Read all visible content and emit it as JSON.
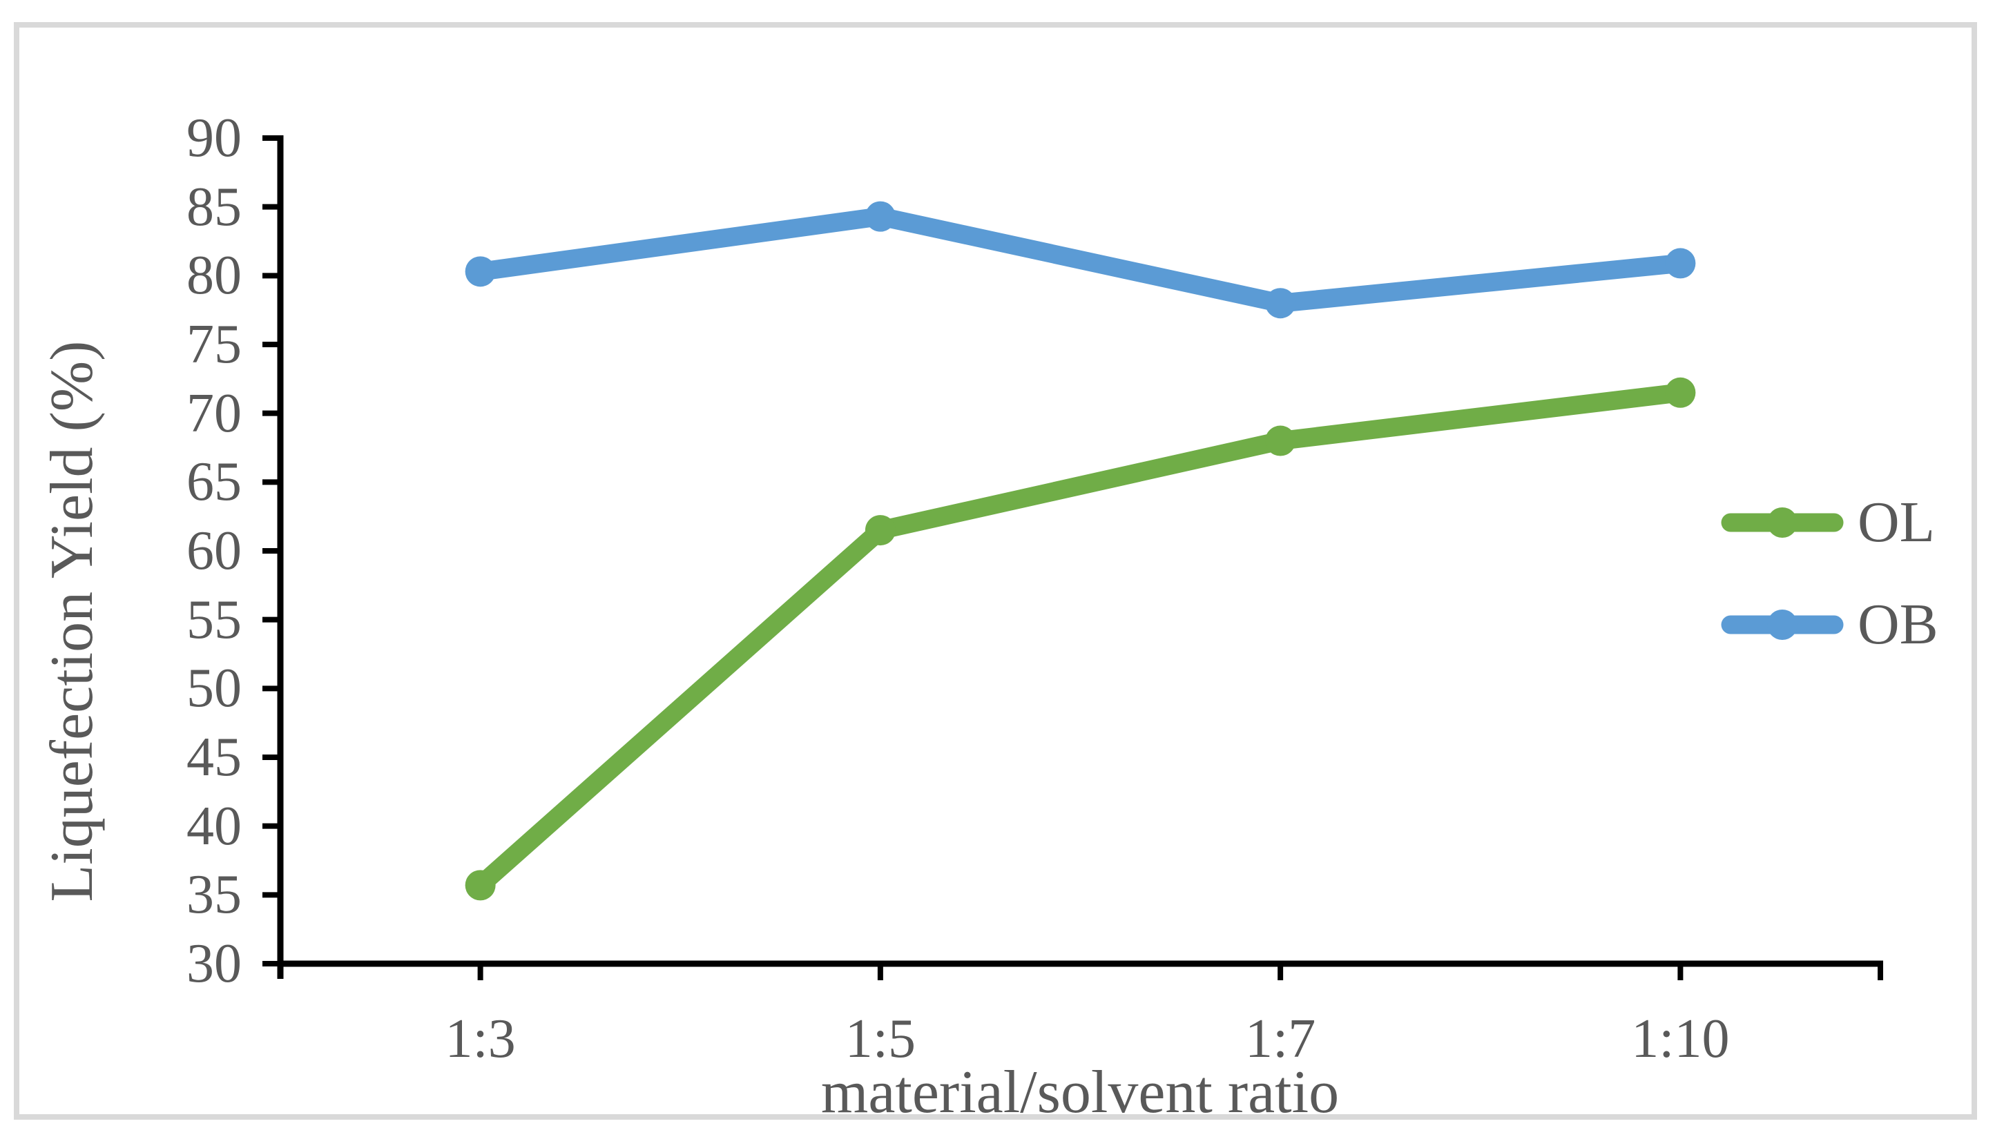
{
  "chart_data": {
    "type": "line",
    "title": "",
    "xlabel": "material/solvent ratio",
    "ylabel": "Liquefection Yield (%)",
    "categories": [
      "1:3",
      "1:5",
      "1:7",
      "1:10"
    ],
    "series": [
      {
        "name": "OL",
        "color": "#70AD47",
        "values": [
          35.7,
          61.5,
          68.0,
          71.5
        ]
      },
      {
        "name": "OB",
        "color": "#5B9BD5",
        "values": [
          80.3,
          84.3,
          78.0,
          80.9
        ]
      }
    ],
    "ylim": [
      30,
      90
    ],
    "ytick_step": 5,
    "ytick_labels": [
      "30",
      "35",
      "40",
      "45",
      "50",
      "55",
      "60",
      "65",
      "70",
      "75",
      "80",
      "85",
      "90"
    ],
    "grid": "off",
    "legend_position": "right-middle",
    "marker": "circle",
    "axis_color": "#000000",
    "text_color": "#595959",
    "frame_border_color": "#D9D9D9",
    "background_color": "#FFFFFF"
  }
}
